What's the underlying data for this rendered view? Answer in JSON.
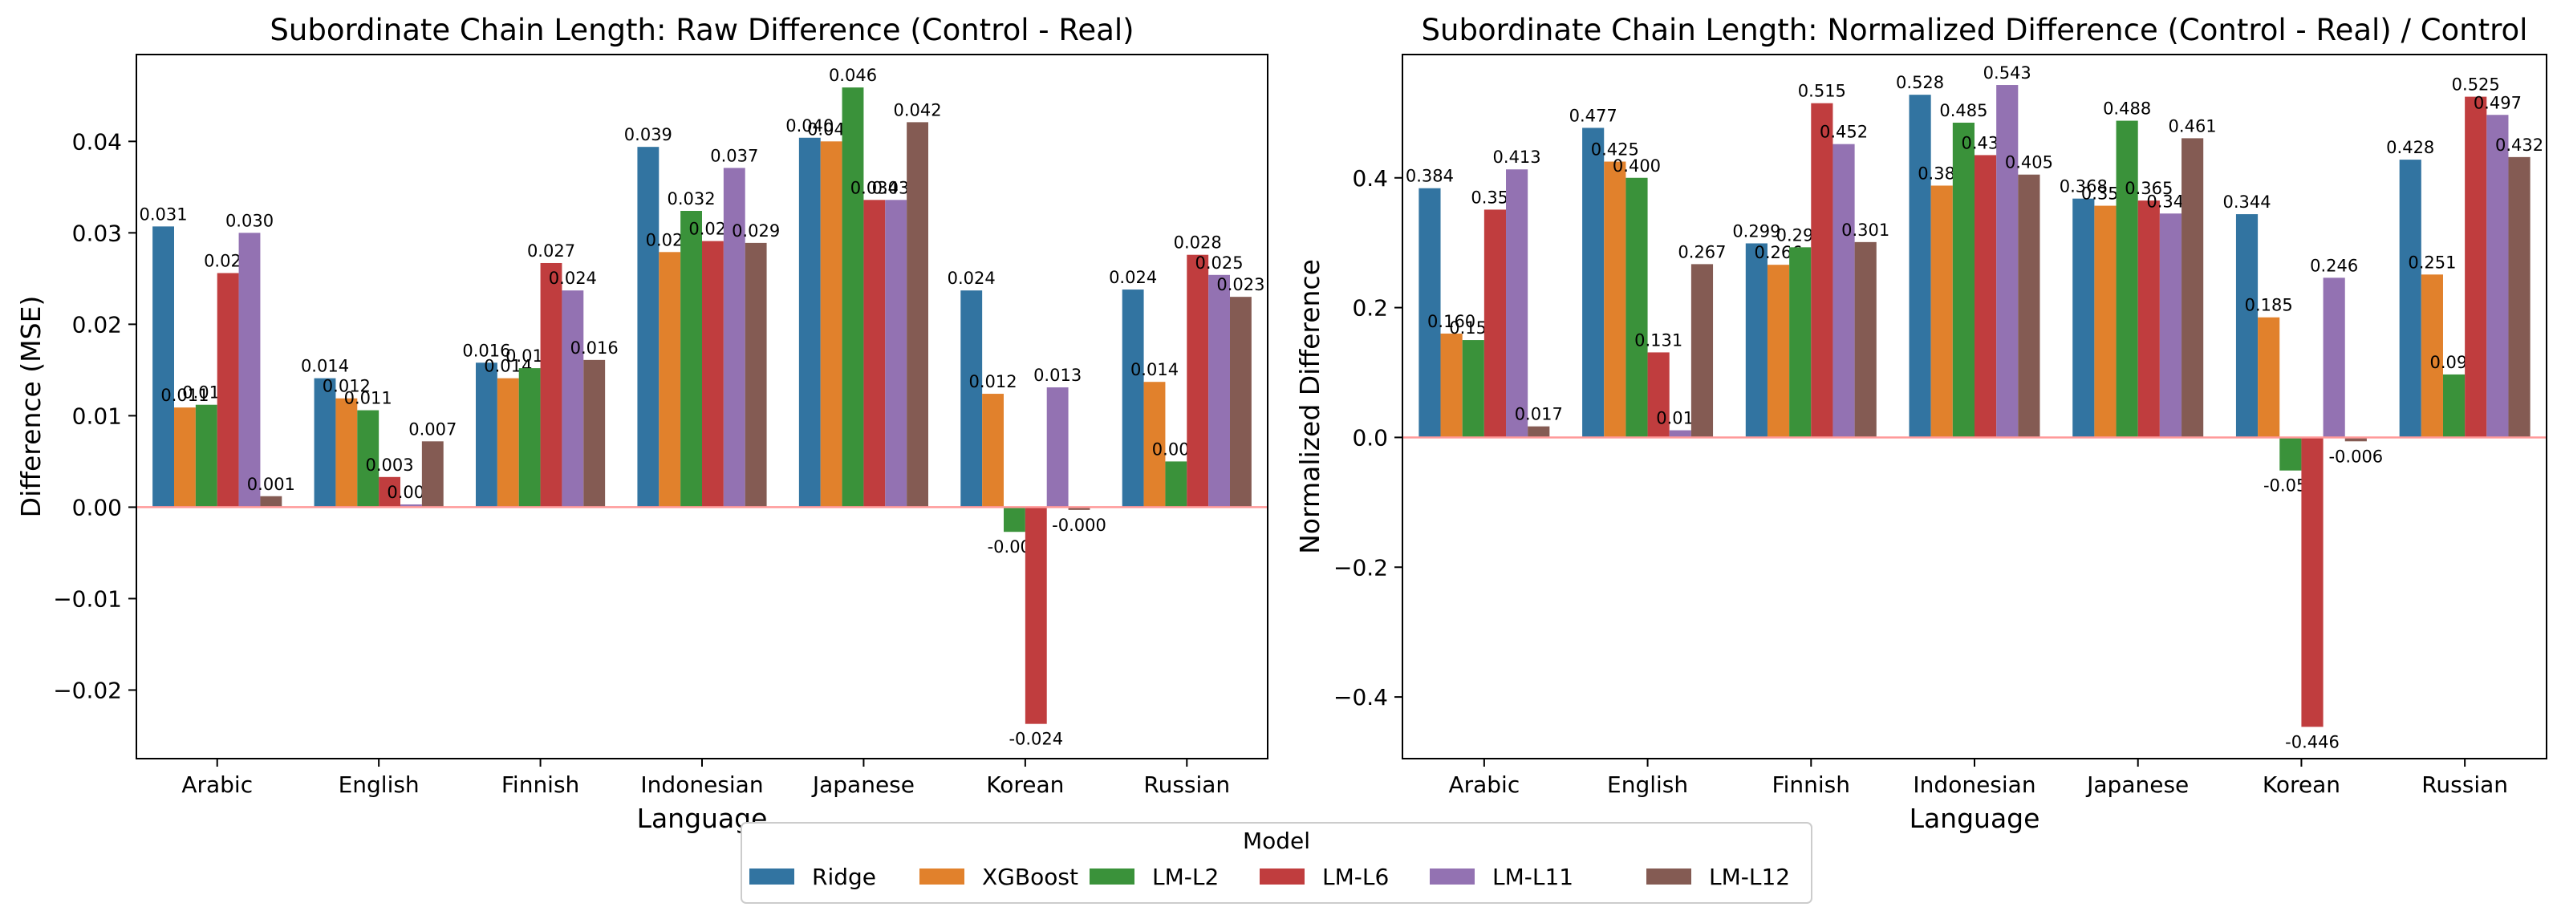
{
  "colors": {
    "Ridge": "#3274a1",
    "XGBoost": "#e1812c",
    "LM-L2": "#3a923a",
    "LM-L6": "#c03d3e",
    "LM-L11": "#9372b2",
    "LM-L12": "#845b53",
    "zero_line": "#ff9999"
  },
  "legend": {
    "title": "Model",
    "entries": [
      "Ridge",
      "XGBoost",
      "LM-L2",
      "LM-L6",
      "LM-L11",
      "LM-L12"
    ],
    "placement": "bottom-center"
  },
  "chart_data": [
    {
      "type": "bar",
      "title": "Subordinate Chain Length: Raw Difference (Control - Real)",
      "xlabel": "Language",
      "ylabel": "Difference (MSE)",
      "ylim": [
        -0.0275,
        0.0495
      ],
      "yticks": [
        -0.02,
        -0.01,
        0.0,
        0.01,
        0.02,
        0.03,
        0.04
      ],
      "ytick_labels": [
        "−0.02",
        "−0.01",
        "0.00",
        "0.01",
        "0.02",
        "0.03",
        "0.04"
      ],
      "categories": [
        "Arabic",
        "English",
        "Finnish",
        "Indonesian",
        "Japanese",
        "Korean",
        "Russian"
      ],
      "series": [
        {
          "name": "Ridge",
          "values": [
            0.0307,
            0.0141,
            0.0158,
            0.0394,
            0.0404,
            0.0237,
            0.0238
          ],
          "labels": [
            "0.031",
            "0.014",
            "0.016",
            "0.039",
            "0.040",
            "0.024",
            "0.024"
          ]
        },
        {
          "name": "XGBoost",
          "values": [
            0.0109,
            0.0119,
            0.0141,
            0.0279,
            0.04,
            0.0124,
            0.0137
          ],
          "labels": [
            "0.011",
            "0.012",
            "0.014",
            "0.028",
            "0.040",
            "0.012",
            "0.014"
          ]
        },
        {
          "name": "LM-L2",
          "values": [
            0.0112,
            0.0106,
            0.0152,
            0.0324,
            0.0459,
            -0.0027,
            0.005
          ],
          "labels": [
            "0.011",
            "0.011",
            "0.015",
            "0.032",
            "0.046",
            "-0.003",
            "0.005"
          ]
        },
        {
          "name": "LM-L6",
          "values": [
            0.0256,
            0.0033,
            0.0267,
            0.0291,
            0.0336,
            -0.0237,
            0.0276
          ],
          "labels": [
            "0.026",
            "0.003",
            "0.027",
            "0.029",
            "0.034",
            "-0.024",
            "0.028"
          ]
        },
        {
          "name": "LM-L11",
          "values": [
            0.03,
            0.0003,
            0.0237,
            0.0371,
            0.0336,
            0.0131,
            0.0254
          ],
          "labels": [
            "0.030",
            "0.000",
            "0.024",
            "0.037",
            "0.034",
            "0.013",
            "0.025"
          ]
        },
        {
          "name": "LM-L12",
          "values": [
            0.0012,
            0.0072,
            0.0161,
            0.0289,
            0.0421,
            -0.0003,
            0.023
          ],
          "labels": [
            "0.001",
            "0.007",
            "0.016",
            "0.029",
            "0.042",
            "-0.000",
            "0.023"
          ]
        }
      ],
      "zero_line": true,
      "grid": false
    },
    {
      "type": "bar",
      "title": "Subordinate Chain Length: Normalized Difference (Control - Real) / Control",
      "xlabel": "Language",
      "ylabel": "Normalized Difference",
      "ylim": [
        -0.495,
        0.59
      ],
      "yticks": [
        -0.4,
        -0.2,
        0.0,
        0.2,
        0.4
      ],
      "ytick_labels": [
        "−0.4",
        "−0.2",
        "0.0",
        "0.2",
        "0.4"
      ],
      "categories": [
        "Arabic",
        "English",
        "Finnish",
        "Indonesian",
        "Japanese",
        "Korean",
        "Russian"
      ],
      "series": [
        {
          "name": "Ridge",
          "values": [
            0.384,
            0.477,
            0.299,
            0.528,
            0.368,
            0.344,
            0.428
          ],
          "labels": [
            "0.384",
            "0.477",
            "0.299",
            "0.528",
            "0.368",
            "0.344",
            "0.428"
          ]
        },
        {
          "name": "XGBoost",
          "values": [
            0.16,
            0.425,
            0.266,
            0.388,
            0.357,
            0.185,
            0.251
          ],
          "labels": [
            "0.160",
            "0.425",
            "0.266",
            "0.388",
            "0.357",
            "0.185",
            "0.251"
          ]
        },
        {
          "name": "LM-L2",
          "values": [
            0.15,
            0.4,
            0.293,
            0.485,
            0.488,
            -0.051,
            0.097
          ],
          "labels": [
            "0.150",
            "0.400",
            "0.293",
            "0.485",
            "0.488",
            "-0.051",
            "0.097"
          ]
        },
        {
          "name": "LM-L6",
          "values": [
            0.351,
            0.131,
            0.515,
            0.435,
            0.365,
            -0.446,
            0.525
          ],
          "labels": [
            "0.351",
            "0.131",
            "0.515",
            "0.435",
            "0.365",
            "-0.446",
            "0.525"
          ]
        },
        {
          "name": "LM-L11",
          "values": [
            0.413,
            0.011,
            0.452,
            0.543,
            0.345,
            0.246,
            0.497
          ],
          "labels": [
            "0.413",
            "0.011",
            "0.452",
            "0.543",
            "0.345",
            "0.246",
            "0.497"
          ]
        },
        {
          "name": "LM-L12",
          "values": [
            0.017,
            0.267,
            0.301,
            0.405,
            0.461,
            -0.006,
            0.432
          ],
          "labels": [
            "0.017",
            "0.267",
            "0.301",
            "0.405",
            "0.461",
            "-0.006",
            "0.432"
          ]
        }
      ],
      "zero_line": true,
      "grid": false
    }
  ]
}
